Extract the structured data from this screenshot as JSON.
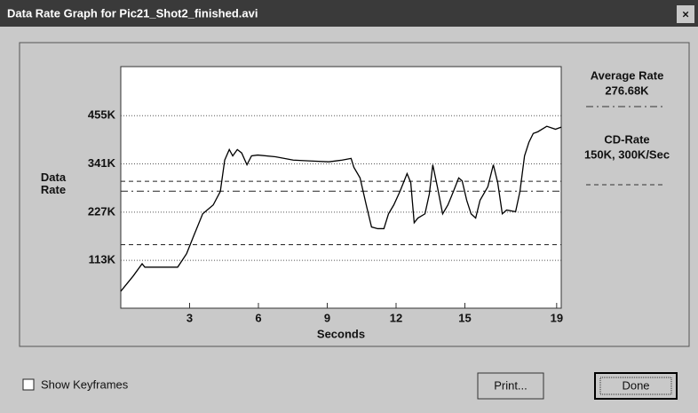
{
  "window": {
    "title": "Data Rate Graph for Pic21_Shot2_finished.avi",
    "close": "×"
  },
  "chart_data": {
    "type": "line",
    "xlabel": "Seconds",
    "ylabel": "Data Rate",
    "x": [
      0,
      0.54,
      0.93,
      1.05,
      2.48,
      2.87,
      3.18,
      3.57,
      4.03,
      4.34,
      4.53,
      4.73,
      4.88,
      5.08,
      5.27,
      5.5,
      5.7,
      5.97,
      6.74,
      7.52,
      8.29,
      9.07,
      9.65,
      10.04,
      10.16,
      10.43,
      10.7,
      10.93,
      11.2,
      11.47,
      11.67,
      11.9,
      12.17,
      12.48,
      12.64,
      12.79,
      12.95,
      13.26,
      13.45,
      13.6,
      13.8,
      14.03,
      14.26,
      14.5,
      14.73,
      14.88,
      15.08,
      15.27,
      15.47,
      15.66,
      16.0,
      16.24,
      16.43,
      16.63,
      16.82,
      17.21,
      17.4,
      17.6,
      17.79,
      17.98,
      18.18,
      18.57,
      18.95,
      19.2
    ],
    "series": [
      {
        "color": "#000000",
        "values": [
          40,
          76,
          105,
          97,
          97,
          129,
          171,
          223,
          244,
          276,
          350,
          375,
          360,
          375,
          367,
          339,
          360,
          362,
          358,
          350,
          348,
          346,
          350,
          354,
          333,
          308,
          244,
          192,
          188,
          188,
          223,
          244,
          276,
          318,
          297,
          202,
          213,
          223,
          270,
          339,
          287,
          223,
          244,
          276,
          308,
          301,
          255,
          223,
          213,
          255,
          287,
          339,
          297,
          223,
          232,
          228,
          276,
          360,
          392,
          413,
          417,
          430,
          423,
          428
        ]
      }
    ],
    "xlim": [
      0,
      19.2
    ],
    "xticks": [
      3,
      6,
      9,
      12,
      15,
      19
    ],
    "ylim": [
      0,
      571
    ],
    "yticks": [
      {
        "value": 113,
        "label": "113K"
      },
      {
        "value": 227,
        "label": "227K"
      },
      {
        "value": 341,
        "label": "341K"
      },
      {
        "value": 455,
        "label": "455K"
      }
    ],
    "grid": true,
    "average": {
      "label": "Average Rate",
      "value": 276.68,
      "value_label": "276.68K"
    },
    "cd_rate": {
      "label": "CD-Rate",
      "text": "150K, 300K/Sec",
      "values": [
        150,
        300
      ]
    }
  },
  "controls": {
    "checkbox": "Show Keyframes",
    "print": "Print...",
    "done": "Done"
  }
}
